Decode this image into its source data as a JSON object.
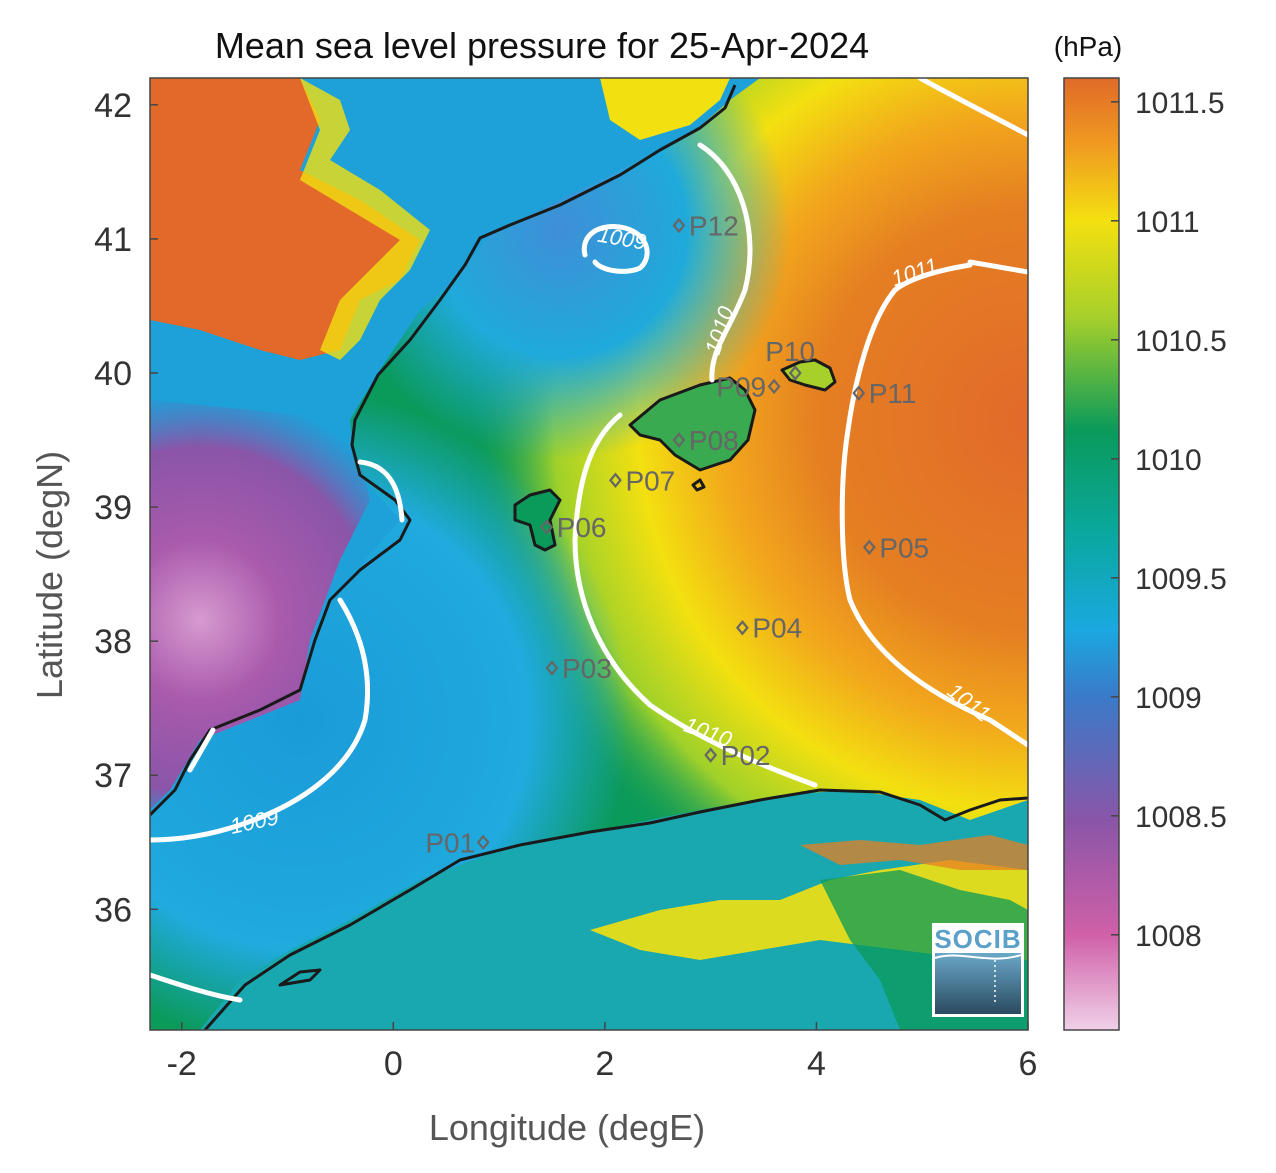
{
  "title": "Mean sea level pressure for 25-Apr-2024",
  "units": "(hPa)",
  "x_axis": {
    "label": "Longitude (degE)",
    "range": [
      -2.3,
      6.0
    ],
    "ticks": [
      {
        "value": -2,
        "label": "-2"
      },
      {
        "value": 0,
        "label": "0"
      },
      {
        "value": 2,
        "label": "2"
      },
      {
        "value": 4,
        "label": "4"
      },
      {
        "value": 6,
        "label": "6"
      }
    ]
  },
  "y_axis": {
    "label": "Latitude (degN)",
    "range": [
      35.1,
      42.2
    ],
    "ticks": [
      {
        "value": 42,
        "label": "42"
      },
      {
        "value": 41,
        "label": "41"
      },
      {
        "value": 40,
        "label": "40"
      },
      {
        "value": 39,
        "label": "39"
      },
      {
        "value": 38,
        "label": "38"
      },
      {
        "value": 37,
        "label": "37"
      },
      {
        "value": 36,
        "label": "36"
      }
    ]
  },
  "colorbar": {
    "range": [
      1007.6,
      1011.6
    ],
    "ticks": [
      {
        "value": 1011.5,
        "label": "1011.5"
      },
      {
        "value": 1011,
        "label": "1011"
      },
      {
        "value": 1010.5,
        "label": "1010.5"
      },
      {
        "value": 1010,
        "label": "1010"
      },
      {
        "value": 1009.5,
        "label": "1009.5"
      },
      {
        "value": 1009,
        "label": "1009"
      },
      {
        "value": 1008.5,
        "label": "1008.5"
      },
      {
        "value": 1008,
        "label": "1008"
      }
    ]
  },
  "contour_labels": [
    {
      "text": "1009",
      "lon": 2.15,
      "lat": 40.95,
      "angle": 10
    },
    {
      "text": "1010",
      "lon": 3.15,
      "lat": 40.3,
      "angle": -72
    },
    {
      "text": "1011",
      "lon": 4.95,
      "lat": 40.7,
      "angle": -18
    },
    {
      "text": "1011",
      "lon": 5.4,
      "lat": 37.5,
      "angle": 38
    },
    {
      "text": "1010",
      "lon": 2.95,
      "lat": 37.27,
      "angle": 20
    },
    {
      "text": "1009",
      "lon": -1.3,
      "lat": 36.6,
      "angle": -12
    }
  ],
  "stations": [
    {
      "name": "P01",
      "label": "P01",
      "lon": 0.85,
      "lat": 36.5,
      "label_side": "left"
    },
    {
      "name": "P02",
      "label": "P02",
      "lon": 3.0,
      "lat": 37.15,
      "label_side": "right"
    },
    {
      "name": "P03",
      "label": "P03",
      "lon": 1.5,
      "lat": 37.8,
      "label_side": "right"
    },
    {
      "name": "P04",
      "label": "P04",
      "lon": 3.3,
      "lat": 38.1,
      "label_side": "right"
    },
    {
      "name": "P05",
      "label": "P05",
      "lon": 4.5,
      "lat": 38.7,
      "label_side": "right"
    },
    {
      "name": "P06",
      "label": "P06",
      "lon": 1.45,
      "lat": 38.85,
      "label_side": "right"
    },
    {
      "name": "P07",
      "label": "P07",
      "lon": 2.1,
      "lat": 39.2,
      "label_side": "right"
    },
    {
      "name": "P08",
      "label": "P08",
      "lon": 2.7,
      "lat": 39.5,
      "label_side": "right"
    },
    {
      "name": "P09",
      "label": "P09",
      "lon": 3.6,
      "lat": 39.9,
      "label_side": "left"
    },
    {
      "name": "P10",
      "label": "P10",
      "lon": 3.8,
      "lat": 40.0,
      "label_side": "above"
    },
    {
      "name": "P11",
      "label": "P11",
      "lon": 4.4,
      "lat": 39.85,
      "label_side": "right"
    },
    {
      "name": "P12",
      "label": "P12",
      "lon": 2.7,
      "lat": 41.1,
      "label_side": "right"
    }
  ],
  "logo": {
    "text": "SOCIB"
  },
  "colors": {
    "land_high": "#e06a28",
    "sea_low": "#1aa8e0",
    "sea_mid": "#0a9a5a",
    "sea_high": "#f3e010",
    "contour": "#ffffff",
    "coastline": "#1a1a1a",
    "station": "#666666"
  }
}
